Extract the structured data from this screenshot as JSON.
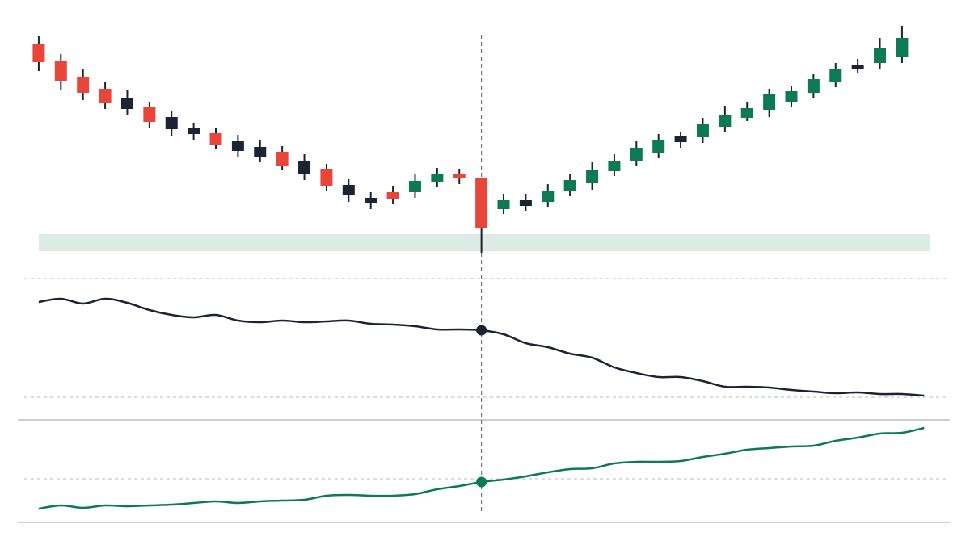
{
  "chart_data": [
    {
      "type": "candlestick",
      "x": [
        0,
        1,
        2,
        3,
        4,
        5,
        6,
        7,
        8,
        9,
        10,
        11,
        12,
        13,
        14,
        15,
        16,
        17,
        18,
        19,
        20,
        21,
        22,
        23,
        24,
        25,
        26,
        27,
        28,
        29,
        30,
        31,
        32,
        33,
        34,
        35,
        36,
        37,
        38,
        39
      ],
      "open": [
        275,
        255,
        235,
        220,
        209,
        198,
        185,
        171,
        165,
        155,
        148,
        142,
        130,
        121,
        101,
        85,
        92,
        92,
        105,
        115,
        110,
        71,
        82,
        80,
        93,
        103,
        118,
        131,
        141,
        161,
        160,
        173,
        184,
        194,
        204,
        215,
        229,
        250,
        252,
        260
      ],
      "high": [
        286,
        263,
        244,
        228,
        219,
        204,
        193,
        178,
        172,
        163,
        156,
        149,
        139,
        127,
        108,
        92,
        100,
        115,
        122,
        121,
        110,
        90,
        90,
        102,
        115,
        129,
        139,
        155,
        164,
        167,
        184,
        199,
        204,
        220,
        224,
        238,
        252,
        257,
        283,
        298
      ],
      "low": [
        242,
        218,
        206,
        195,
        187,
        172,
        162,
        157,
        145,
        136,
        129,
        120,
        107,
        94,
        80,
        71,
        77,
        85,
        98,
        102,
        17,
        65,
        69,
        74,
        87,
        95,
        112,
        124,
        134,
        147,
        153,
        166,
        180,
        185,
        197,
        209,
        222,
        239,
        245,
        252
      ],
      "close": [
        253,
        230,
        215,
        203,
        195,
        179,
        170,
        164,
        151,
        143,
        136,
        124,
        115,
        100,
        88,
        79,
        83,
        106,
        114,
        109,
        47,
        82,
        75,
        93,
        107,
        119,
        131,
        147,
        156,
        154,
        176,
        187,
        196,
        213,
        217,
        232,
        244,
        244,
        271,
        283
      ],
      "colors": [
        "#e8463a",
        "#e8463a",
        "#e8463a",
        "#e8463a",
        "#1c2433",
        "#e8463a",
        "#1c2433",
        "#1c2433",
        "#e8463a",
        "#1c2433",
        "#1c2433",
        "#e8463a",
        "#1c2433",
        "#e8463a",
        "#1c2433",
        "#1c2433",
        "#e8463a",
        "#0b7a55",
        "#0b7a55",
        "#e8463a",
        "#e8463a",
        "#0b7a55",
        "#1c2433",
        "#0b7a55",
        "#0b7a55",
        "#0b7a55",
        "#0b7a55",
        "#0b7a55",
        "#0b7a55",
        "#1c2433",
        "#0b7a55",
        "#0b7a55",
        "#0b7a55",
        "#0b7a55",
        "#0b7a55",
        "#0b7a55",
        "#0b7a55",
        "#1c2433",
        "#0b7a55",
        "#0b7a55"
      ],
      "xlim": [
        -1.75,
        42.07
      ],
      "ylim": [
        10,
        310
      ],
      "highlight": [
        19,
        40
      ],
      "highlight_color": "#dcebe4",
      "cursor": 20
    },
    {
      "type": "line",
      "x": [
        0,
        1,
        2,
        3,
        4,
        5,
        6,
        7,
        8,
        9,
        10,
        11,
        12,
        13,
        14,
        15,
        16,
        17,
        18,
        19,
        20,
        21,
        22,
        23,
        24,
        25,
        26,
        27,
        28,
        29,
        30,
        31,
        32,
        33,
        34,
        35,
        36,
        37,
        38,
        39,
        40
      ],
      "series": [
        {
          "color": "#1c2433",
          "values": [
            118,
            122,
            116,
            122,
            117,
            108,
            102,
            99,
            102,
            95,
            93,
            95,
            93,
            94,
            95,
            91,
            90,
            88,
            84,
            84,
            83,
            78,
            67,
            62,
            54,
            49,
            37,
            30,
            25,
            25,
            20,
            13,
            13,
            12,
            9,
            7,
            5,
            6,
            4,
            4,
            2
          ]
        }
      ],
      "xlim": [
        -1.75,
        42.07
      ],
      "ylim": [
        0,
        147
      ],
      "yticks": [
        0,
        147
      ],
      "marker_x": 20
    },
    {
      "type": "line",
      "x": [
        0,
        1,
        2,
        3,
        4,
        5,
        6,
        7,
        8,
        9,
        10,
        11,
        12,
        13,
        14,
        15,
        16,
        17,
        18,
        19,
        20,
        21,
        22,
        23,
        24,
        25,
        26,
        27,
        28,
        29,
        30,
        31,
        32,
        33,
        34,
        35,
        36,
        37,
        38,
        39,
        40
      ],
      "series": [
        {
          "color": "#0b7a55",
          "values": [
            17,
            21,
            18,
            21,
            20,
            21,
            22,
            24,
            26,
            24,
            26,
            27,
            28,
            33,
            34,
            33,
            33,
            35,
            41,
            45,
            50,
            53,
            57,
            62,
            66,
            67,
            73,
            75,
            75,
            76,
            81,
            85,
            90,
            92,
            94,
            95,
            101,
            105,
            110,
            111,
            117
          ]
        }
      ],
      "xlim": [
        -1.75,
        42.07
      ],
      "ylim": [
        0,
        127
      ],
      "yticks": [
        54
      ],
      "marker_x": 20
    }
  ]
}
